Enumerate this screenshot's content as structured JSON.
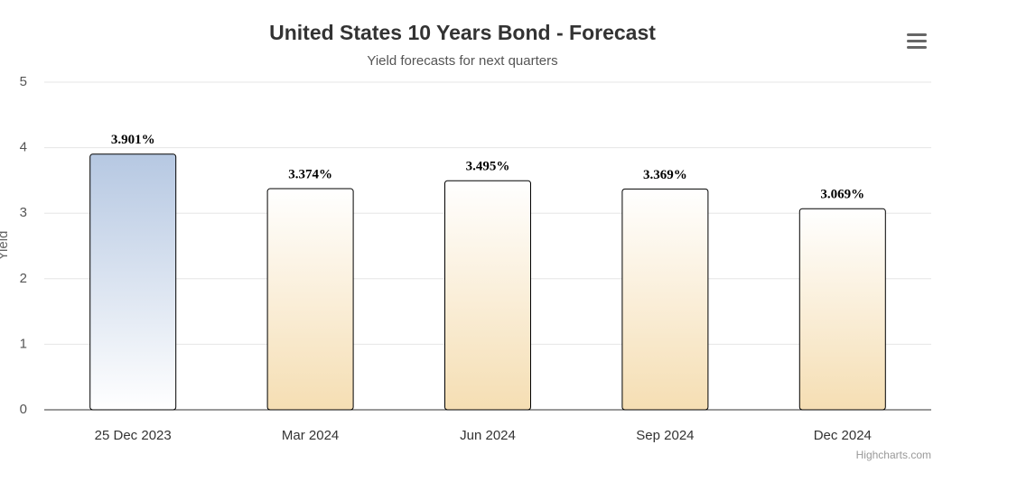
{
  "chart_data": {
    "type": "bar",
    "title": "United States 10 Years Bond - Forecast",
    "subtitle": "Yield forecasts for next quarters",
    "y_axis_label": "Yield",
    "credit": "Highcharts.com",
    "categories": [
      "25 Dec 2023",
      "Mar 2024",
      "Jun 2024",
      "Sep 2024",
      "Dec 2024"
    ],
    "values": [
      3.901,
      3.374,
      3.495,
      3.369,
      3.069
    ],
    "value_labels": [
      "3.901%",
      "3.374%",
      "3.495%",
      "3.369%",
      "3.069%"
    ],
    "bar_gradients": [
      [
        "#b6c8e2",
        "#ffffff"
      ],
      [
        "#ffffff",
        "#f5deb3"
      ],
      [
        "#ffffff",
        "#f5deb3"
      ],
      [
        "#ffffff",
        "#f5deb3"
      ],
      [
        "#ffffff",
        "#f5deb3"
      ]
    ],
    "ylim": [
      0,
      5
    ],
    "yticks": [
      0,
      1,
      2,
      3,
      4,
      5
    ],
    "grid": true
  }
}
